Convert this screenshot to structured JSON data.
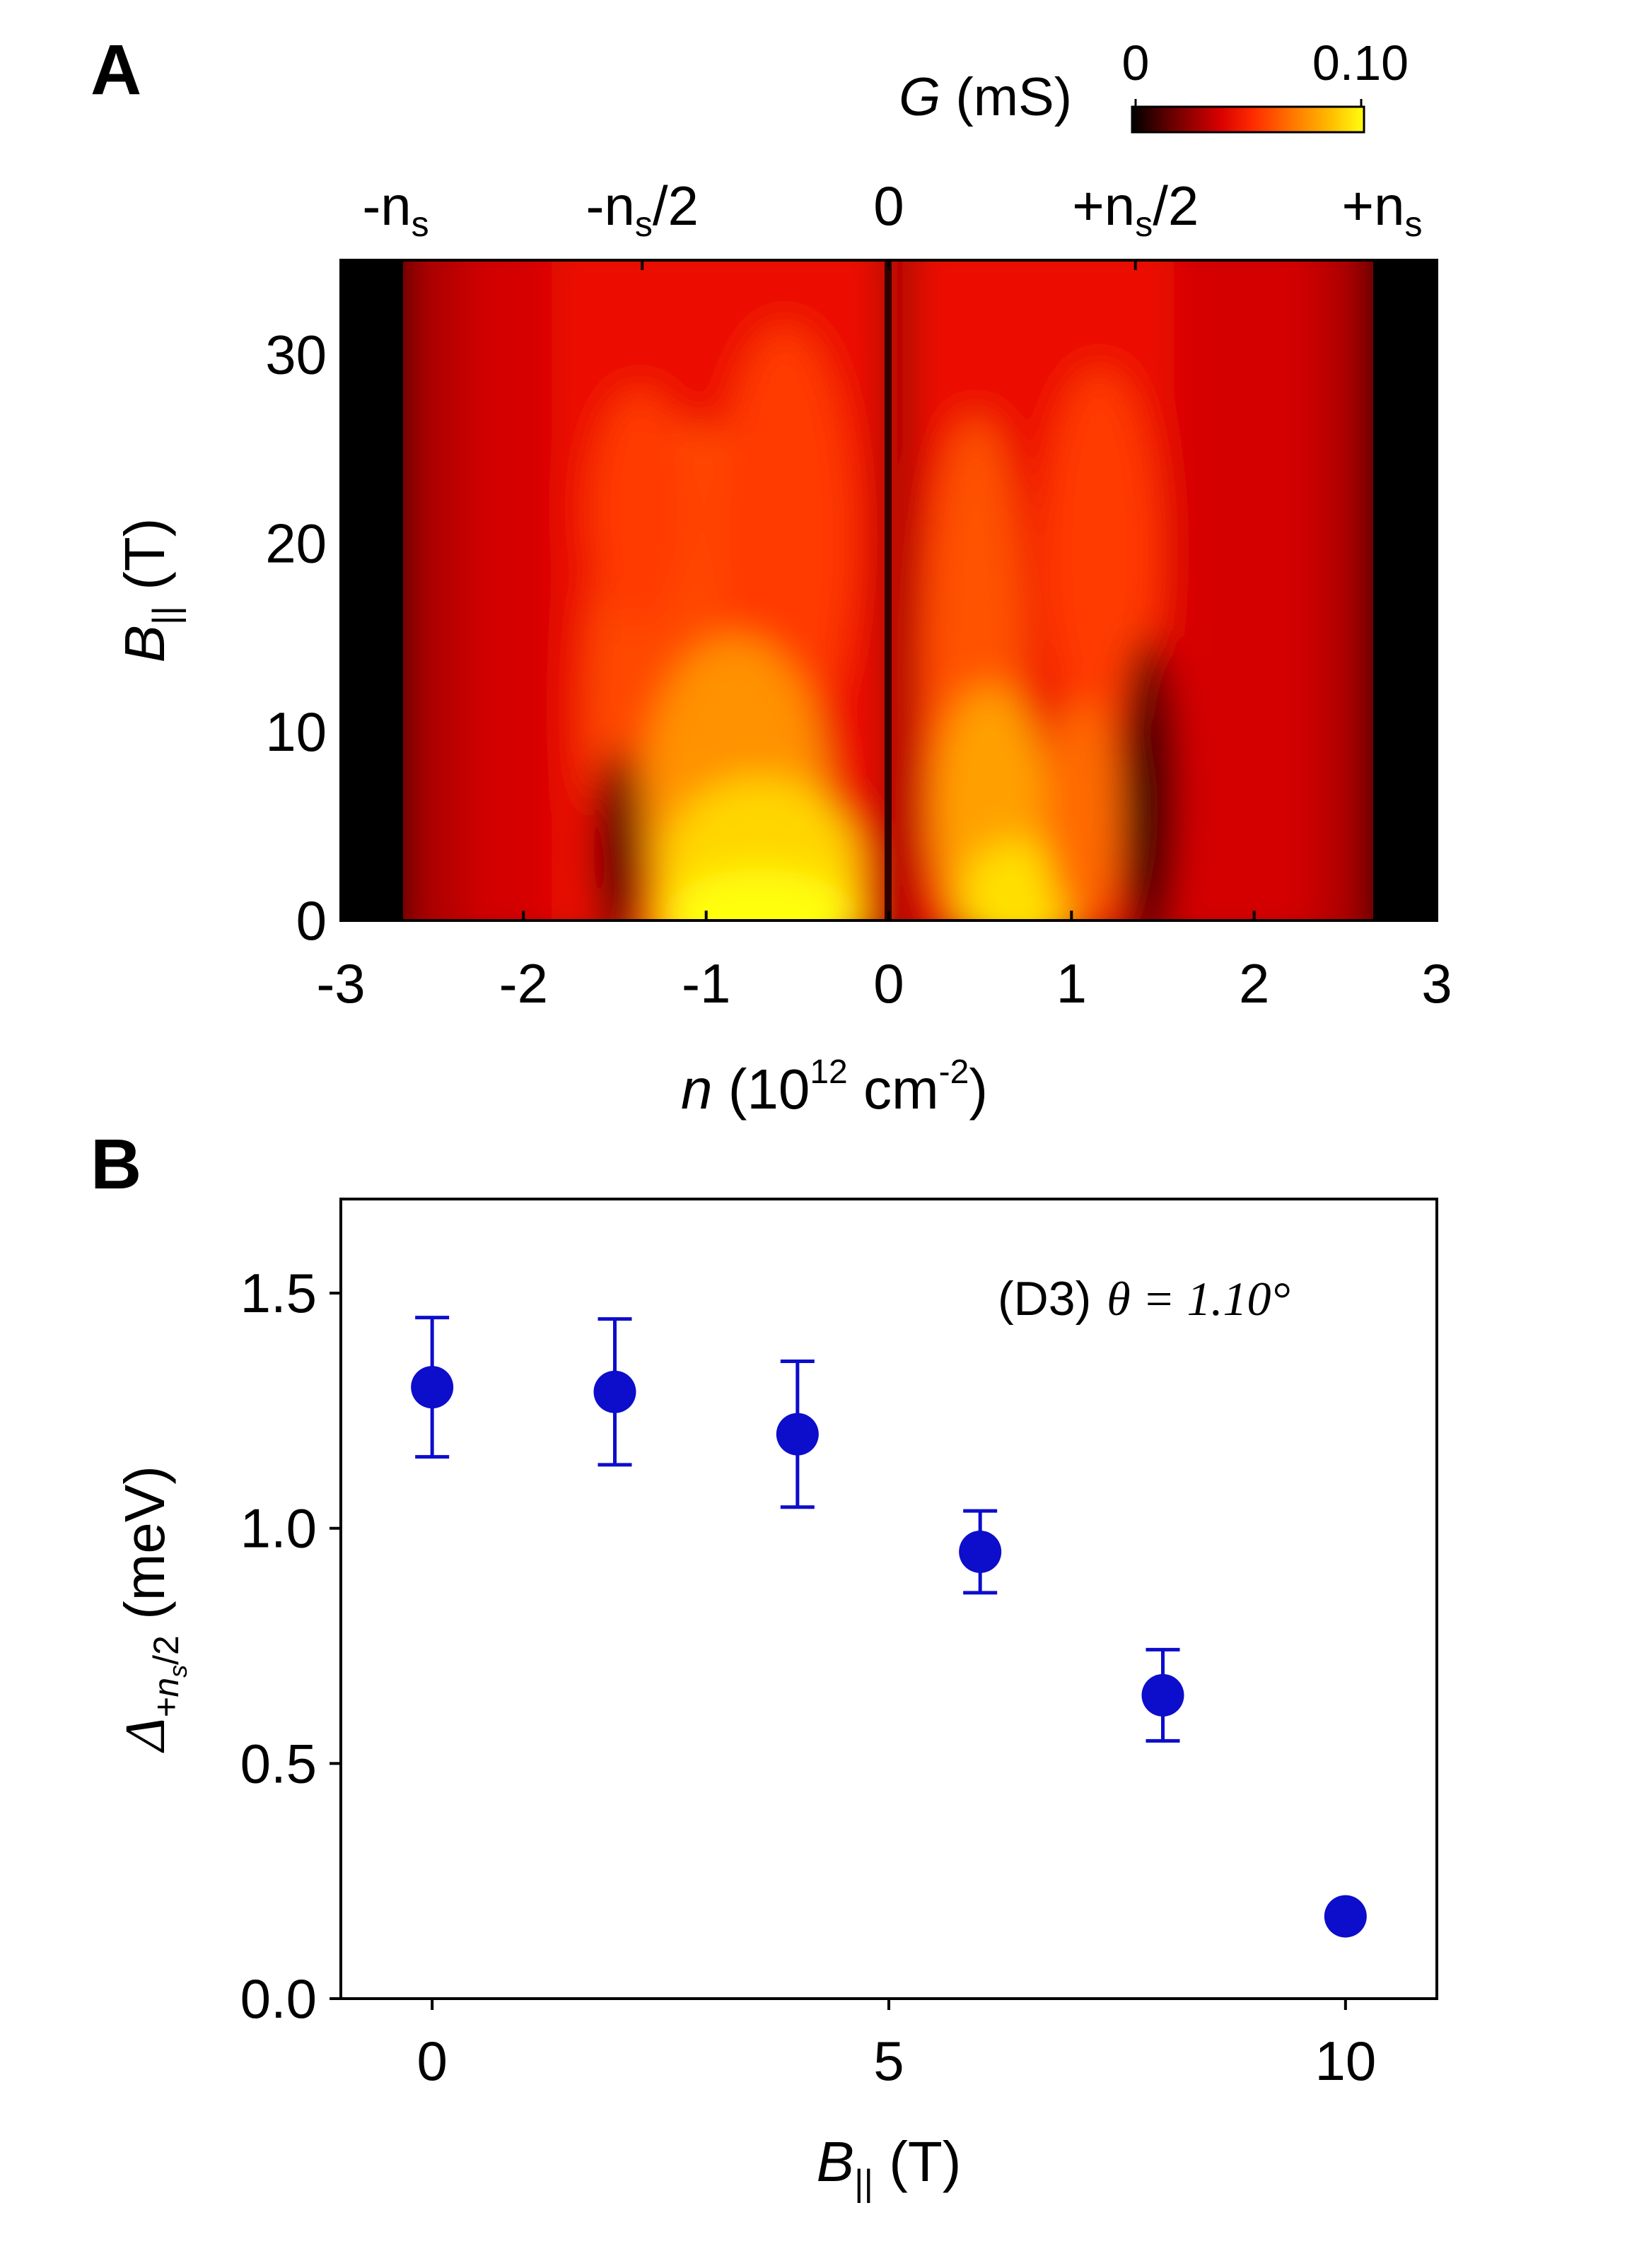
{
  "chart_data": [
    {
      "panel": "A",
      "type": "heatmap",
      "xlabel_var": "n",
      "xlabel_unit_open": " (10",
      "xlabel_exp": "12",
      "xlabel_unit_mid": " cm",
      "xlabel_exp2": "-2",
      "xlabel_close": ")",
      "ylabel_var": "B",
      "ylabel_sub": "||",
      "ylabel_unit": " (T)",
      "xlim": [
        -3,
        3
      ],
      "ylim": [
        0,
        35
      ],
      "xticks": [
        -3,
        -2,
        -1,
        0,
        1,
        2,
        3
      ],
      "xtick_labels": [
        "-3",
        "-2",
        "-1",
        "0",
        "1",
        "2",
        "3"
      ],
      "yticks": [
        0,
        10,
        20,
        30
      ],
      "ytick_labels": [
        "0",
        "10",
        "20",
        "30"
      ],
      "top_axis": {
        "ticks": [
          -2.7,
          -1.35,
          0,
          1.35,
          2.7
        ],
        "labels": [
          {
            "pre": "-n",
            "sub": "s",
            "post": ""
          },
          {
            "pre": "-n",
            "sub": "s",
            "post": "/2"
          },
          {
            "pre": "0",
            "sub": "",
            "post": ""
          },
          {
            "pre": "+n",
            "sub": "s",
            "post": "/2"
          },
          {
            "pre": "+n",
            "sub": "s",
            "post": ""
          }
        ]
      },
      "colorbar": {
        "label_var": "G",
        "label_unit": " (mS)",
        "min": 0,
        "max": 0.1,
        "min_label": "0",
        "max_label": "0.10",
        "colormap": "hot",
        "colors": [
          "#000000",
          "#6e0000",
          "#d80000",
          "#ff3a00",
          "#ff8a00",
          "#ffc800",
          "#ffff10"
        ]
      }
    },
    {
      "panel": "B",
      "type": "scatter",
      "x": [
        0,
        2,
        4,
        6,
        8,
        10
      ],
      "y": [
        1.3,
        1.29,
        1.2,
        0.95,
        0.645,
        0.175
      ],
      "yerr": [
        0.148,
        0.155,
        0.155,
        0.087,
        0.097,
        0.0
      ],
      "xlim": [
        -1,
        11
      ],
      "ylim": [
        0,
        1.7
      ],
      "xticks": [
        0,
        5,
        10
      ],
      "xtick_labels": [
        "0",
        "5",
        "10"
      ],
      "yticks": [
        0,
        0.5,
        1.0,
        1.5
      ],
      "ytick_labels": [
        "0.0",
        "0.5",
        "1.0",
        "1.5"
      ],
      "xlabel_var": "B",
      "xlabel_sub": "||",
      "xlabel_unit": " (T)",
      "ylabel_var": "Δ",
      "ylabel_sub": "+n",
      "ylabel_subsub": "s",
      "ylabel_sub_post": "/2",
      "ylabel_unit": " (meV)",
      "annotation_device": "(D3)",
      "annotation_theta": "θ = 1.10°",
      "marker_color": "#0d0dcc"
    }
  ],
  "panel_letters": [
    "A",
    "B"
  ]
}
